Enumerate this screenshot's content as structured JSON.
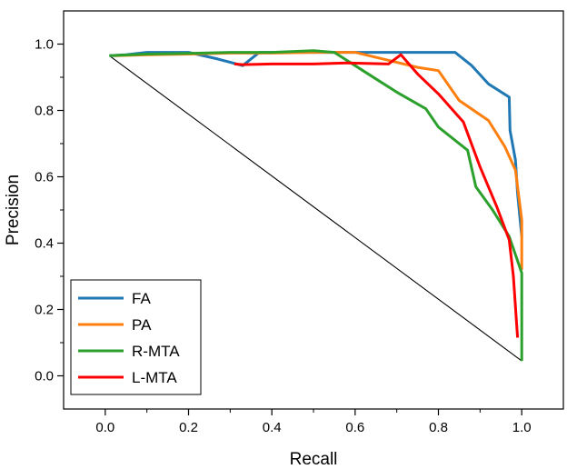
{
  "chart_data": {
    "type": "line",
    "title": "",
    "xlabel": "Recall",
    "ylabel": "Precision",
    "xlim": [
      -0.1,
      1.1
    ],
    "ylim": [
      -0.1,
      1.1
    ],
    "xticks": [
      0.0,
      0.2,
      0.4,
      0.6,
      0.8,
      1.0
    ],
    "xtick_labels": [
      "0.0",
      "0.2",
      "0.4",
      "0.6",
      "0.8",
      "1.0"
    ],
    "yticks": [
      0.0,
      0.2,
      0.4,
      0.6,
      0.8,
      1.0
    ],
    "ytick_labels": [
      "0.0",
      "0.2",
      "0.4",
      "0.6",
      "0.8",
      "1.0"
    ],
    "grid": false,
    "legend_position": "bottom-left",
    "reference_line": {
      "name": "baseline",
      "color": "#000000",
      "x": [
        0.01,
        1.0
      ],
      "y": [
        0.965,
        0.045
      ]
    },
    "series": [
      {
        "name": "FA",
        "color": "#1f77b4",
        "x": [
          0.01,
          0.05,
          0.1,
          0.2,
          0.27,
          0.33,
          0.37,
          0.45,
          0.55,
          0.65,
          0.75,
          0.84,
          0.88,
          0.92,
          0.97,
          0.972,
          0.985,
          0.99,
          1.0
        ],
        "y": [
          0.965,
          0.968,
          0.975,
          0.975,
          0.955,
          0.935,
          0.975,
          0.975,
          0.975,
          0.975,
          0.975,
          0.975,
          0.935,
          0.88,
          0.84,
          0.74,
          0.65,
          0.55,
          0.42
        ]
      },
      {
        "name": "PA",
        "color": "#ff7f0e",
        "x": [
          0.02,
          0.1,
          0.2,
          0.3,
          0.4,
          0.5,
          0.6,
          0.65,
          0.7,
          0.75,
          0.8,
          0.85,
          0.92,
          0.96,
          0.985,
          1.0,
          1.0
        ],
        "y": [
          0.965,
          0.968,
          0.97,
          0.973,
          0.973,
          0.975,
          0.975,
          0.96,
          0.945,
          0.93,
          0.92,
          0.83,
          0.77,
          0.69,
          0.62,
          0.47,
          0.32
        ]
      },
      {
        "name": "R-MTA",
        "color": "#2ca02c",
        "x": [
          0.01,
          0.1,
          0.2,
          0.3,
          0.4,
          0.5,
          0.55,
          0.6,
          0.65,
          0.7,
          0.77,
          0.8,
          0.83,
          0.87,
          0.89,
          0.93,
          0.97,
          1.0,
          1.0
        ],
        "y": [
          0.965,
          0.97,
          0.972,
          0.975,
          0.975,
          0.98,
          0.975,
          0.935,
          0.895,
          0.855,
          0.805,
          0.75,
          0.72,
          0.68,
          0.57,
          0.5,
          0.42,
          0.31,
          0.045
        ]
      },
      {
        "name": "L-MTA",
        "color": "#ff0000",
        "x": [
          0.31,
          0.33,
          0.4,
          0.5,
          0.58,
          0.68,
          0.71,
          0.75,
          0.8,
          0.86,
          0.9,
          0.94,
          0.97,
          0.98,
          0.99
        ],
        "y": [
          0.94,
          0.938,
          0.94,
          0.94,
          0.943,
          0.94,
          0.968,
          0.91,
          0.85,
          0.765,
          0.63,
          0.51,
          0.41,
          0.3,
          0.115
        ]
      }
    ]
  }
}
